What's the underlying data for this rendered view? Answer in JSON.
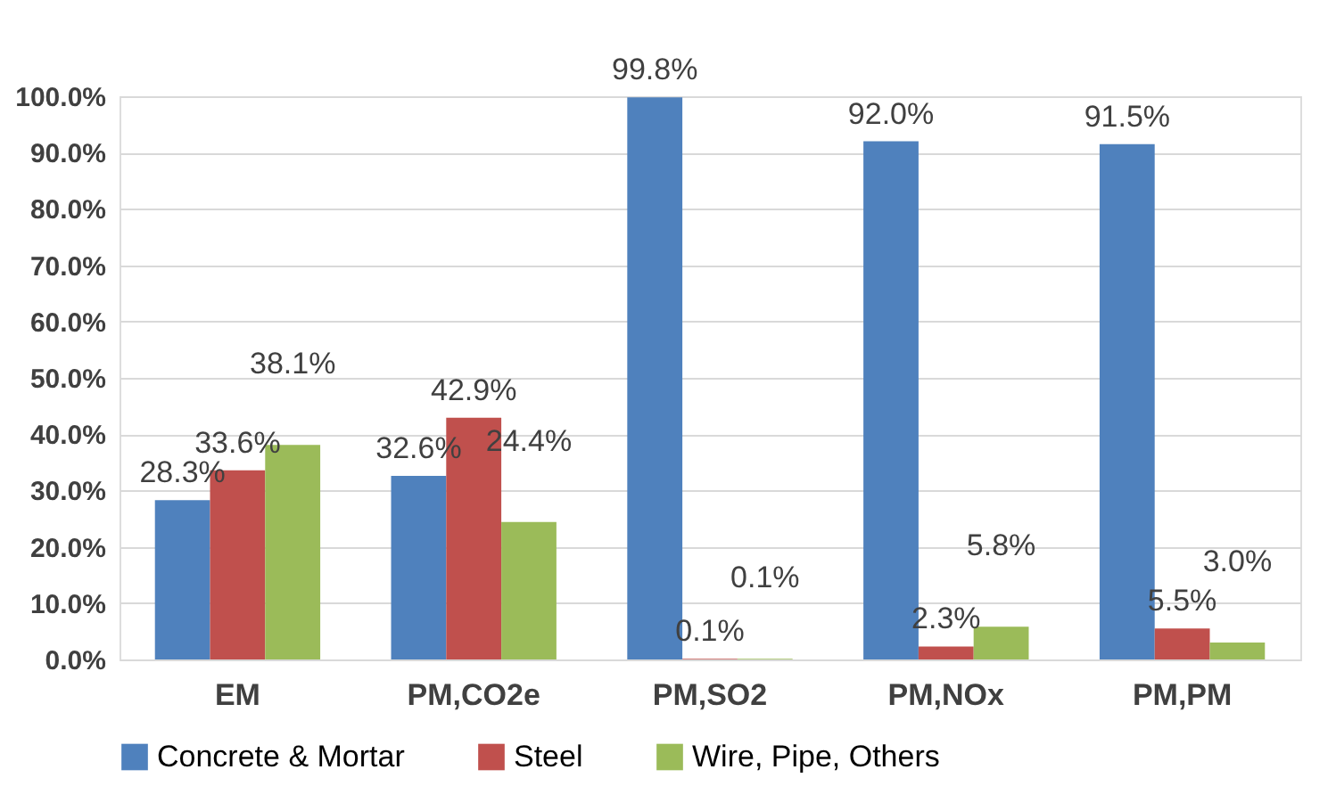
{
  "chart_data": {
    "type": "bar",
    "categories": [
      "EM",
      "PM,CO2e",
      "PM,SO2",
      "PM,NOx",
      "PM,PM"
    ],
    "series": [
      {
        "name": "Concrete & Mortar",
        "color": "#4f81bd",
        "values": [
          28.3,
          32.6,
          99.8,
          92.0,
          91.5
        ],
        "value_labels": [
          "28.3%",
          "32.6%",
          "99.8%",
          "92.0%",
          "91.5%"
        ]
      },
      {
        "name": "Steel",
        "color": "#c0504d",
        "values": [
          33.6,
          42.9,
          0.1,
          2.3,
          5.5
        ],
        "value_labels": [
          "33.6%",
          "42.9%",
          "0.1%",
          "2.3%",
          "5.5%"
        ]
      },
      {
        "name": "Wire, Pipe, Others",
        "color": "#9bbb59",
        "values": [
          38.1,
          24.4,
          0.1,
          5.8,
          3.0
        ],
        "value_labels": [
          "38.1%",
          "24.4%",
          "0.1%",
          "5.8%",
          "3.0%"
        ]
      }
    ],
    "ylim": [
      0,
      100
    ],
    "yticks": [
      {
        "value": 0,
        "label": "0.0%"
      },
      {
        "value": 10,
        "label": "10.0%"
      },
      {
        "value": 20,
        "label": "20.0%"
      },
      {
        "value": 30,
        "label": "30.0%"
      },
      {
        "value": 40,
        "label": "40.0%"
      },
      {
        "value": 50,
        "label": "50.0%"
      },
      {
        "value": 60,
        "label": "60.0%"
      },
      {
        "value": 70,
        "label": "70.0%"
      },
      {
        "value": 80,
        "label": "80.0%"
      },
      {
        "value": 90,
        "label": "90.0%"
      },
      {
        "value": 100,
        "label": "100.0%"
      }
    ],
    "grid": "y",
    "legend": "bottom"
  }
}
